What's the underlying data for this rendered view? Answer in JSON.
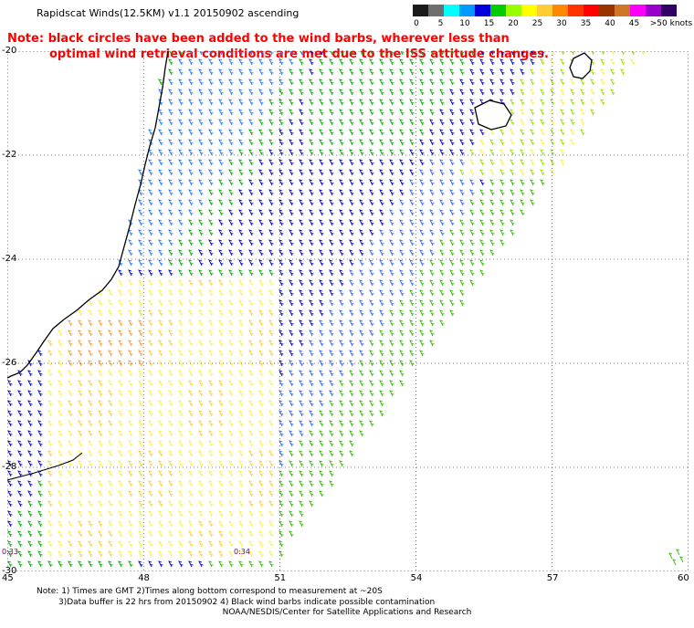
{
  "title": "Rapidscat Winds(12.5KM) v1.1 20150902 ascending",
  "note": {
    "line1": "Note: black circles have been added to the wind barbs, wherever less than",
    "line2": "optimal wind retrieval conditions are met due to the ISS attitude changes."
  },
  "legend": {
    "colors": [
      "#1a1a1a",
      "#6e6e6e",
      "#00ffff",
      "#0099ff",
      "#0000dd",
      "#00cc00",
      "#99ff00",
      "#ffff00",
      "#ffcc33",
      "#ff8800",
      "#ff3300",
      "#ff0000",
      "#993300",
      "#cc7722",
      "#ff00ff",
      "#9900cc",
      "#330066"
    ],
    "labels": [
      "0",
      "5",
      "10",
      "15",
      "20",
      "25",
      "30",
      "35",
      "40",
      "45",
      ">50 knots"
    ]
  },
  "axes": {
    "lat_labels": [
      "-20",
      "-22",
      "-24",
      "-26",
      "-28",
      "-30"
    ],
    "lon_labels": [
      "45",
      "48",
      "51",
      "54",
      "57",
      "60"
    ],
    "lon_range": [
      45,
      60
    ],
    "lat_range": [
      -30,
      -20
    ]
  },
  "time_labels": [
    "0:33",
    "0:34"
  ],
  "footnote": {
    "line1": "Note: 1) Times are GMT 2)Times along bottom correspond to measurement at ~20S",
    "line2": "3)Data buffer is 22 hrs from 20150902 4) Black wind barbs indicate possible contamination"
  },
  "credit": "NOAA/NESDIS/Center for Satellite Applications and Research"
}
